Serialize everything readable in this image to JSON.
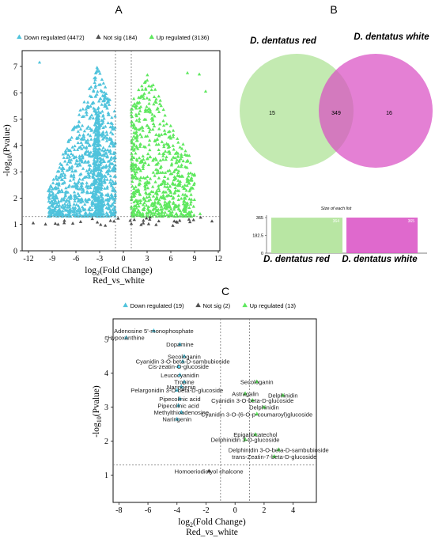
{
  "panel_letters": {
    "a": "A",
    "b": "B",
    "c": "C"
  },
  "colors": {
    "down": "#4fc3dc",
    "notsig": "#505050",
    "up": "#5ee85e",
    "venn_red": "#b8e6a3",
    "venn_white": "#d94fc4"
  },
  "chart_data": [
    {
      "type": "scatter",
      "panel": "A",
      "legend": [
        {
          "key": "down",
          "text": "Down regulated (4472)"
        },
        {
          "key": "notsig",
          "text": "Not sig (184)"
        },
        {
          "key": "up",
          "text": "Up regulated (3136)"
        }
      ],
      "xlabel_main": "log",
      "xlabel_sub": "2",
      "xlabel_rest": "(Fold Change)",
      "xlabel2": "Red_vs_white",
      "ylabel_a": "-log",
      "ylabel_sub": "10",
      "ylabel_b": "(Pvalue)",
      "xlim": [
        -12.8,
        12.2
      ],
      "ylim": [
        0,
        7.6
      ],
      "xticks": [
        "-12",
        "-9",
        "-6",
        "-3",
        "0",
        "3",
        "6",
        "9",
        "12"
      ],
      "xtick_values": [
        -12,
        -9,
        -6,
        -3,
        0,
        3,
        6,
        9,
        12
      ],
      "yticks": [
        "0",
        "1",
        "2",
        "3",
        "4",
        "5",
        "6",
        "7"
      ],
      "ytick_values": [
        0,
        1,
        2,
        3,
        4,
        5,
        6,
        7
      ],
      "vlines": [
        -1,
        1
      ],
      "hline": 1.3,
      "grid": false
    },
    {
      "type": "venn",
      "panel": "B",
      "sets": [
        {
          "key": "red",
          "name": "D. dentatus red",
          "only": "15",
          "size": 364
        },
        {
          "key": "white",
          "name": "D. dentatus white",
          "only": "16",
          "size": 365
        }
      ],
      "overlap": "349",
      "bar_title": "Size of each list",
      "bar_yticks": [
        "365",
        "182.5",
        "0"
      ],
      "bar_labels": [
        "364",
        "365"
      ],
      "bar_ymax": 365
    },
    {
      "type": "scatter",
      "panel": "C",
      "legend": [
        {
          "key": "down",
          "text": "Down regulated (19)"
        },
        {
          "key": "notsig",
          "text": "Not sig (2)"
        },
        {
          "key": "up",
          "text": "Up regulated (13)"
        }
      ],
      "xlabel_main": "log",
      "xlabel_sub": "2",
      "xlabel_rest": "(Fold Change)",
      "xlabel2": "Red_vs_white",
      "ylabel_a": "-log",
      "ylabel_sub": "10",
      "ylabel_b": "(Pvalue)",
      "xlim": [
        -8.4,
        5.6
      ],
      "ylim": [
        0.2,
        5.6
      ],
      "xticks": [
        "-8",
        "-6",
        "-4",
        "-2",
        "0",
        "2",
        "4"
      ],
      "xtick_values": [
        -8,
        -6,
        -4,
        -2,
        0,
        2,
        4
      ],
      "yticks": [
        "1",
        "2",
        "3",
        "4",
        "5"
      ],
      "ytick_values": [
        1,
        2,
        3,
        4,
        5
      ],
      "vlines": [
        -1,
        1
      ],
      "hline": 1.3,
      "points": [
        {
          "label": "Adenosine 5'-monophosphate",
          "x": -5.6,
          "y": 5.25,
          "g": "down"
        },
        {
          "label": "Hypoxanthine",
          "x": -7.5,
          "y": 5.05,
          "g": "down"
        },
        {
          "label": "Dopamine",
          "x": -3.8,
          "y": 4.85,
          "g": "down"
        },
        {
          "label": "Secologanin",
          "x": -3.5,
          "y": 4.5,
          "g": "down"
        },
        {
          "label": "Cyanidin 3-O-beta-D-sambubioside",
          "x": -3.6,
          "y": 4.35,
          "g": "down"
        },
        {
          "label": "Cis-zeatin-O-glucoside",
          "x": -3.9,
          "y": 4.2,
          "g": "down"
        },
        {
          "label": "Leucocyanidin",
          "x": -3.8,
          "y": 3.95,
          "g": "down"
        },
        {
          "label": "Tropine",
          "x": -3.5,
          "y": 3.75,
          "g": "down"
        },
        {
          "label": "Naringenin",
          "x": -3.7,
          "y": 3.6,
          "g": "down"
        },
        {
          "label": "Pelargonidin 3-O-beta-D-glucoside",
          "x": -4.0,
          "y": 3.5,
          "g": "down"
        },
        {
          "label": "Pipecolinic acid",
          "x": -3.8,
          "y": 3.25,
          "g": "down"
        },
        {
          "label": "Pipecolinic acid",
          "x": -3.9,
          "y": 3.05,
          "g": "down"
        },
        {
          "label": "Methylthioadenosine",
          "x": -3.7,
          "y": 2.85,
          "g": "down"
        },
        {
          "label": "Naringenin",
          "x": -4.0,
          "y": 2.65,
          "g": "down"
        },
        {
          "label": "Secologanin",
          "x": 1.5,
          "y": 3.75,
          "g": "up"
        },
        {
          "label": "Astragalin",
          "x": 0.7,
          "y": 3.4,
          "g": "up"
        },
        {
          "label": "Delphinidin",
          "x": 3.3,
          "y": 3.35,
          "g": "up"
        },
        {
          "label": "Cyanidin 3-O-beta-D-glucoside",
          "x": 1.2,
          "y": 3.2,
          "g": "up"
        },
        {
          "label": "Delphinidin",
          "x": 2.0,
          "y": 3.0,
          "g": "up"
        },
        {
          "label": "Cyanidin 3-O-(6-O-p-coumaroyl)glucoside",
          "x": 1.5,
          "y": 2.8,
          "g": "up"
        },
        {
          "label": "Epigallocatechol",
          "x": 1.4,
          "y": 2.2,
          "g": "up"
        },
        {
          "label": "Delphinidin 3-O-glucoside",
          "x": 0.7,
          "y": 2.05,
          "g": "up"
        },
        {
          "label": "Delphinidin 3-O-beta-D-sambubioside",
          "x": 3.0,
          "y": 1.75,
          "g": "up"
        },
        {
          "label": "trans-Zeatin-7-beta-D-glucoside",
          "x": 2.7,
          "y": 1.55,
          "g": "up"
        },
        {
          "label": "Homoeriodictyol chalcone",
          "x": -1.8,
          "y": 1.12,
          "g": "notsig"
        }
      ]
    }
  ]
}
